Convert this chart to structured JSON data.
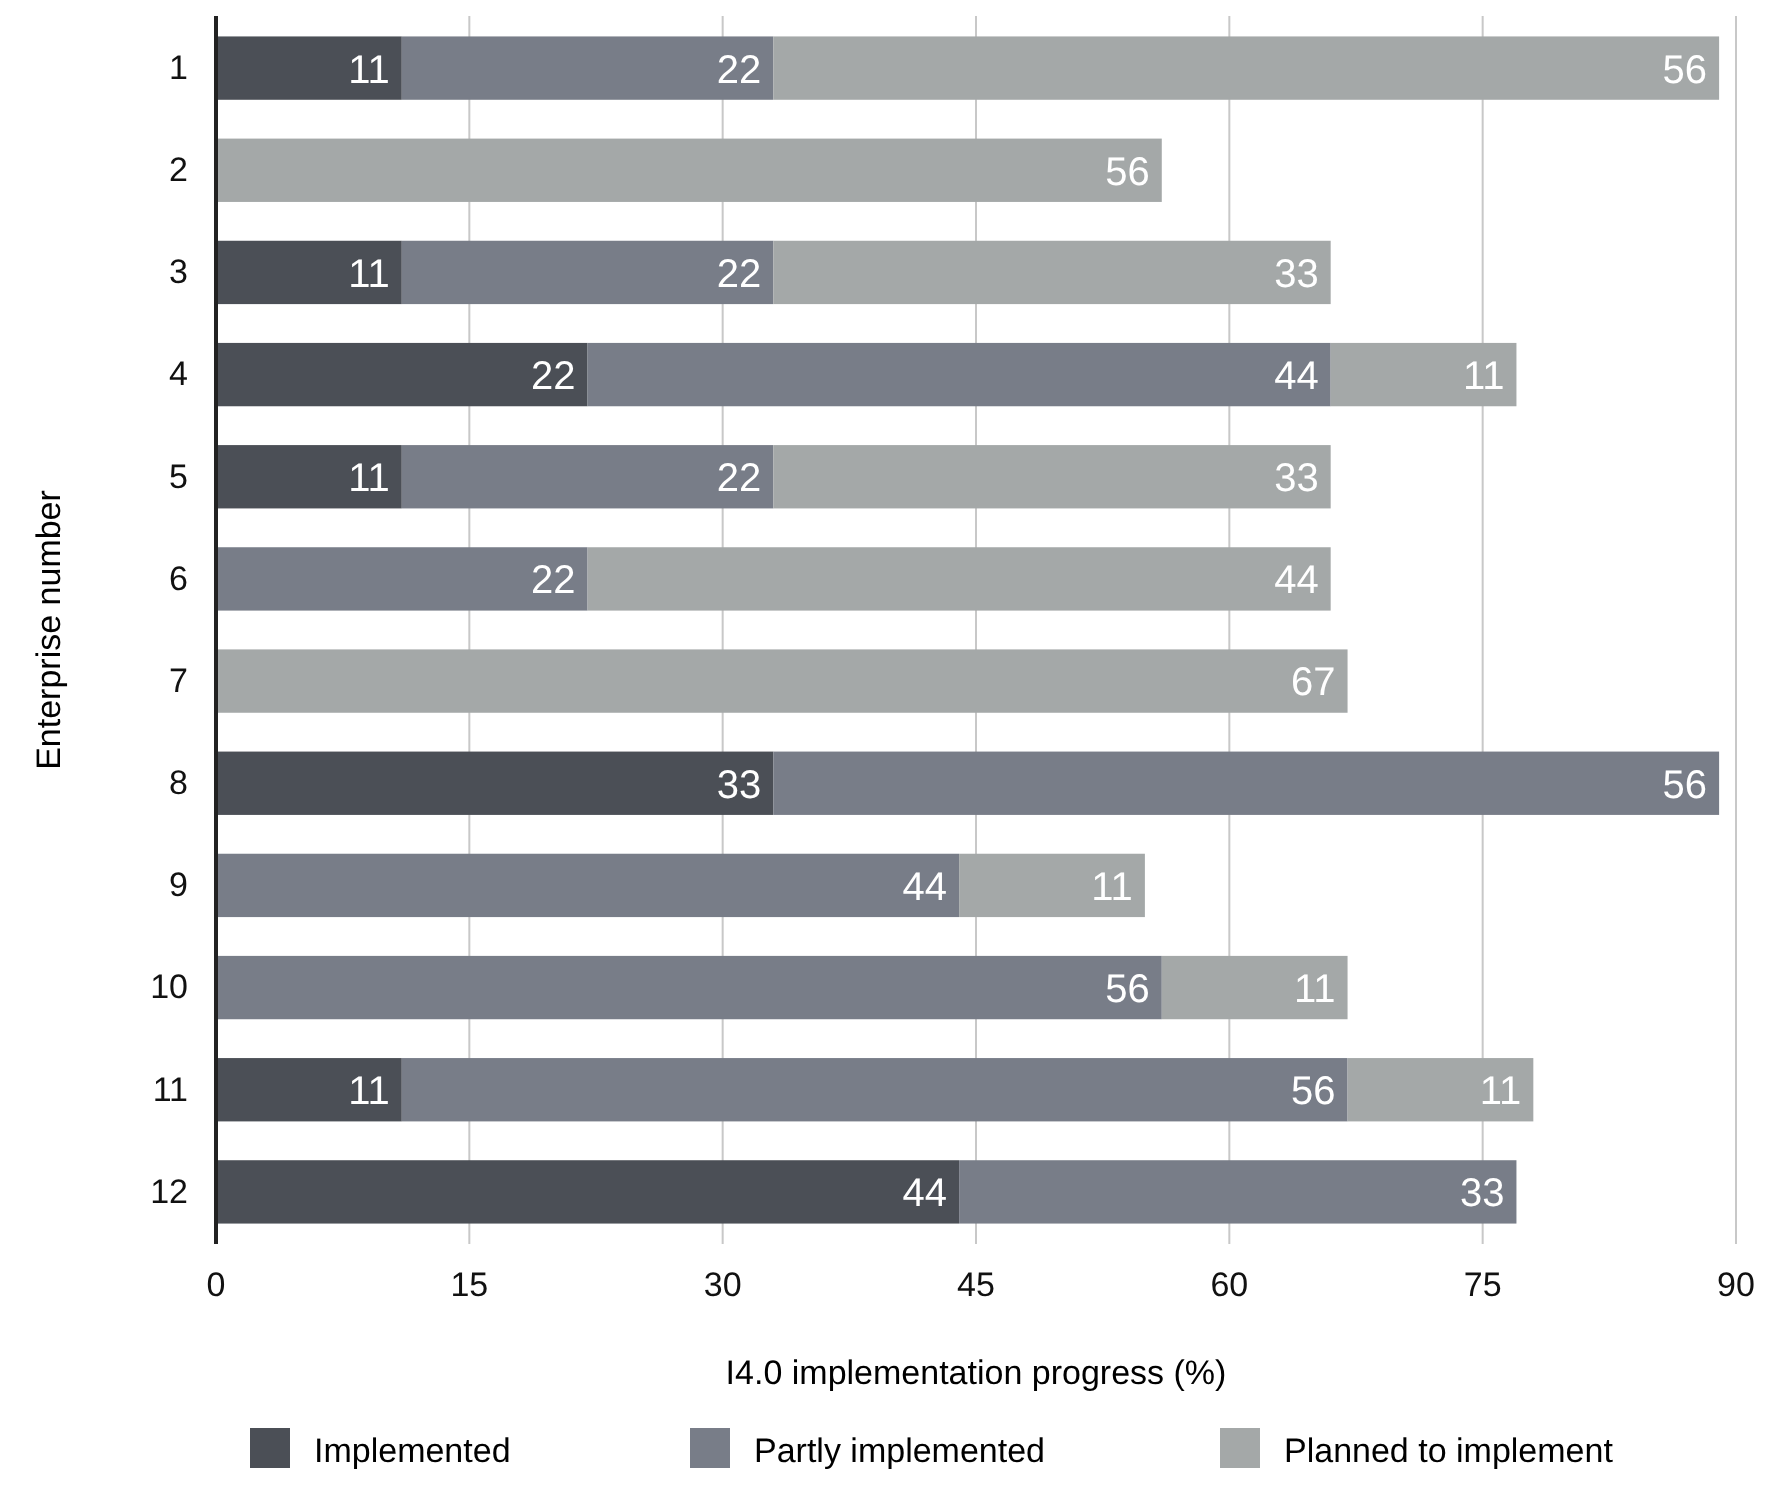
{
  "chart_data": {
    "type": "bar",
    "orientation": "horizontal",
    "stacked": true,
    "xlabel": "I4.0 implementation progress (%)",
    "ylabel": "Enterprise number",
    "categories": [
      "1",
      "2",
      "3",
      "4",
      "5",
      "6",
      "7",
      "8",
      "9",
      "10",
      "11",
      "12"
    ],
    "series": [
      {
        "name": "Implemented",
        "color": "#4b4f56",
        "values": [
          11,
          null,
          11,
          22,
          11,
          null,
          null,
          33,
          null,
          null,
          11,
          44
        ]
      },
      {
        "name": "Partly implemented",
        "color": "#787d88",
        "values": [
          22,
          null,
          22,
          44,
          22,
          22,
          null,
          56,
          44,
          56,
          56,
          33
        ]
      },
      {
        "name": "Planned to implement",
        "color": "#a4a8a8",
        "values": [
          56,
          56,
          33,
          11,
          33,
          44,
          67,
          null,
          11,
          11,
          11,
          null
        ]
      }
    ],
    "xlim": [
      0,
      90
    ],
    "xticks": [
      0,
      15,
      30,
      45,
      60,
      75,
      90
    ],
    "grid": "x",
    "legend": "bottom",
    "data_labels": true
  }
}
